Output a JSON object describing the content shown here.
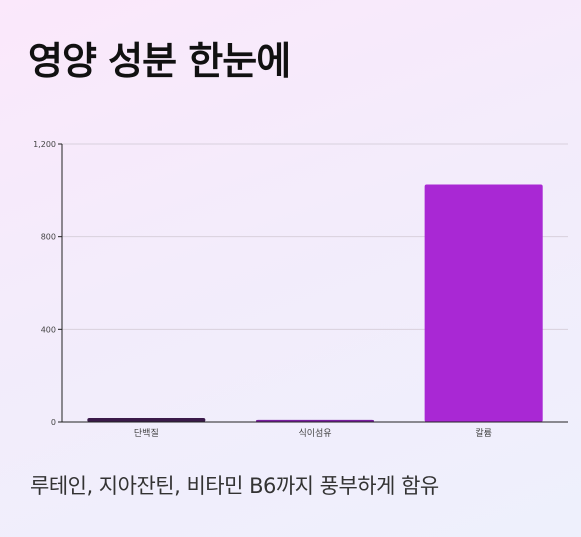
{
  "header": {
    "title": "영양 성분 한눈에"
  },
  "caption": "루테인, 지아잔틴, 비타민 B6까지 풍부하게 함유",
  "colors": {
    "background": "#f4ecfb",
    "grid": "#d8d0dc",
    "axis": "#222222"
  },
  "chart_data": {
    "type": "bar",
    "title": "",
    "xlabel": "",
    "ylabel": "",
    "categories": [
      "단백질",
      "식이섬유",
      "칼륨"
    ],
    "values": [
      17,
      9,
      1025
    ],
    "bar_colors": [
      "#3b1a4a",
      "#7a1fa0",
      "#a928d4"
    ],
    "ylim": [
      0,
      1200
    ],
    "yticks": [
      0,
      400,
      800,
      1200
    ],
    "ytick_labels": [
      "0",
      "400",
      "800",
      "1,200"
    ],
    "grid": true,
    "legend": "none"
  }
}
